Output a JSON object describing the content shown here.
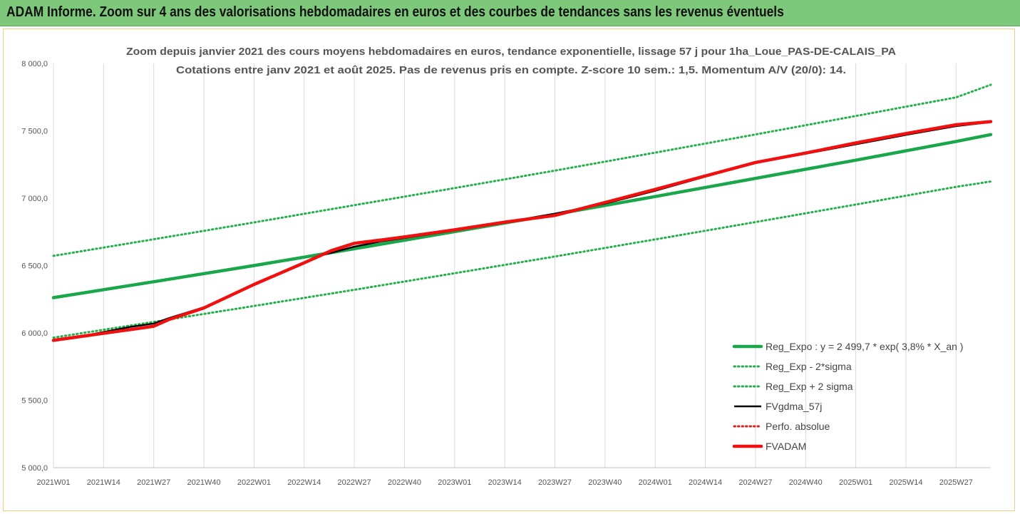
{
  "banner": {
    "title": "ADAM Informe. Zoom sur 4 ans des valorisations hebdomadaires en euros et des courbes de tendances sans les revenus éventuels"
  },
  "colors": {
    "banner_bg": "#7dc87a",
    "reg_expo": "#1aa64a",
    "reg_band": "#22b04a",
    "fvgdma": "#000000",
    "perfo": "#e02020",
    "fvadam": "#f01010"
  },
  "chart_data": {
    "type": "line",
    "title_lines": [
      "Zoom depuis janvier 2021 des cours moyens hebdomadaires en euros, tendance exponentielle, lissage 57 j pour 1ha_Loue_PAS-DE-CALAIS_PA",
      "Cotations entre janv 2021 et août 2025. Pas de revenus pris en compte. Z-score 10 sem.: 1,5. Momentum A/V (20/0): 14."
    ],
    "ylim": [
      5000,
      8000
    ],
    "y_ticks": [
      "8 000,0",
      "7 500,0",
      "7 000,0",
      "6 500,0",
      "6 000,0",
      "5 500,0",
      "5 000,0"
    ],
    "y_tick_values": [
      8000,
      7500,
      7000,
      6500,
      6000,
      5500,
      5000
    ],
    "x_ticks": [
      "2021W01",
      "2021W14",
      "2021W27",
      "2021W40",
      "2022W01",
      "2022W14",
      "2022W27",
      "2022W40",
      "2023W01",
      "2023W14",
      "2023W27",
      "2023W40",
      "2024W01",
      "2024W14",
      "2024W27",
      "2024W40",
      "2025W01",
      "2025W14",
      "2025W27"
    ],
    "x_tick_index": [
      0,
      13,
      26,
      39,
      52,
      65,
      78,
      91,
      104,
      117,
      130,
      143,
      156,
      169,
      182,
      195,
      208,
      221,
      234
    ],
    "x_range": [
      0,
      243
    ],
    "grid": {
      "vertical": true,
      "horizontal": false
    },
    "legend_position": "bottom-right",
    "series": [
      {
        "name": "Reg_Expo : y = 2 499,7 * exp( 3,8% *  X_an )",
        "style": "solid-thick",
        "color": "#1aa64a",
        "x": [
          0,
          26,
          52,
          78,
          104,
          130,
          156,
          182,
          208,
          234,
          243
        ],
        "y": [
          6262,
          6380,
          6500,
          6625,
          6752,
          6880,
          7012,
          7147,
          7282,
          7421,
          7472
        ]
      },
      {
        "name": "Reg_Exp - 2*sigma",
        "style": "dotted",
        "color": "#22b04a",
        "x": [
          0,
          26,
          52,
          78,
          104,
          130,
          156,
          182,
          208,
          234,
          243
        ],
        "y": [
          5965,
          6082,
          6200,
          6320,
          6443,
          6567,
          6694,
          6823,
          6953,
          7084,
          7124
        ]
      },
      {
        "name": "Reg_Exp + 2 sigma",
        "style": "dotted",
        "color": "#22b04a",
        "x": [
          0,
          26,
          52,
          78,
          104,
          130,
          156,
          182,
          208,
          234,
          243
        ],
        "y": [
          6572,
          6695,
          6820,
          6948,
          7075,
          7205,
          7338,
          7473,
          7610,
          7748,
          7842
        ]
      },
      {
        "name": "FVgdma_57j",
        "style": "solid",
        "color": "#000000",
        "x": [
          0,
          10,
          20,
          26,
          30,
          39,
          52,
          65,
          70,
          78,
          85,
          91,
          104,
          117,
          130,
          143,
          156,
          169,
          182,
          195,
          208,
          221,
          234,
          243
        ],
        "y": [
          5945,
          5990,
          6045,
          6070,
          6110,
          6190,
          6360,
          6520,
          6580,
          6640,
          6680,
          6705,
          6760,
          6820,
          6885,
          6960,
          7055,
          7160,
          7265,
          7330,
          7400,
          7470,
          7535,
          7565
        ]
      },
      {
        "name": "Perfo. absolue",
        "style": "dotted",
        "color": "#e02020",
        "x": [],
        "y": []
      },
      {
        "name": "FVADAM",
        "style": "solid-thick",
        "color": "#f01010",
        "x": [
          0,
          10,
          20,
          26,
          30,
          39,
          52,
          65,
          72,
          78,
          85,
          91,
          104,
          117,
          130,
          143,
          156,
          169,
          182,
          195,
          208,
          221,
          234,
          243
        ],
        "y": [
          5945,
          5985,
          6025,
          6050,
          6100,
          6185,
          6360,
          6520,
          6610,
          6665,
          6690,
          6712,
          6765,
          6822,
          6872,
          6968,
          7065,
          7165,
          7265,
          7335,
          7410,
          7480,
          7545,
          7568
        ]
      }
    ]
  }
}
